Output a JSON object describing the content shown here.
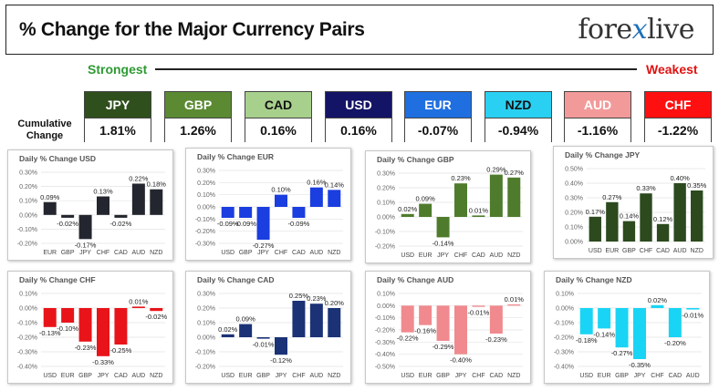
{
  "header": {
    "title": "% Change for the Major Currency Pairs",
    "logo_left": "fore",
    "logo_x": "x",
    "logo_right": "live"
  },
  "scale": {
    "strongest": "Strongest",
    "weakest": "Weakest"
  },
  "cumulative_label": "Cumulative Change",
  "currencies": [
    {
      "name": "JPY",
      "value": "1.81%",
      "color": "#2f4f1d",
      "text_color": "#ffffff"
    },
    {
      "name": "GBP",
      "value": "1.26%",
      "color": "#5b8a33",
      "text_color": "#ffffff"
    },
    {
      "name": "CAD",
      "value": "0.16%",
      "color": "#a8d08d",
      "text_color": "#111111"
    },
    {
      "name": "USD",
      "value": "0.16%",
      "color": "#141466",
      "text_color": "#ffffff"
    },
    {
      "name": "EUR",
      "value": "-0.07%",
      "color": "#1f6fe0",
      "text_color": "#ffffff"
    },
    {
      "name": "NZD",
      "value": "-0.94%",
      "color": "#2ad0f2",
      "text_color": "#111111"
    },
    {
      "name": "AUD",
      "value": "-1.16%",
      "color": "#f29a9a",
      "text_color": "#ffffff"
    },
    {
      "name": "CHF",
      "value": "-1.22%",
      "color": "#ff1010",
      "text_color": "#ffffff"
    }
  ],
  "chart_data": [
    {
      "type": "bar",
      "title": "Daily % Change USD",
      "color": "#23262e",
      "categories": [
        "EUR",
        "GBP",
        "JPY",
        "CHF",
        "CAD",
        "AUD",
        "NZD"
      ],
      "values": [
        0.09,
        -0.02,
        -0.17,
        0.13,
        -0.02,
        0.22,
        0.18
      ],
      "labels": [
        "0.09%",
        "-0.02%",
        "-0.17%",
        "0.13%",
        "-0.02%",
        "0.22%",
        "0.18%"
      ],
      "yticks": [
        0.3,
        0.2,
        0.1,
        0.0,
        -0.1,
        -0.2
      ],
      "ytick_labels": [
        "0.30%",
        "0.20%",
        "0.10%",
        "0.00%",
        "-0.10%",
        "-0.20%"
      ],
      "ylim": [
        -0.2,
        0.3
      ]
    },
    {
      "type": "bar",
      "title": "Daily % Change EUR",
      "color": "#1a3ee0",
      "categories": [
        "USD",
        "GBP",
        "JPY",
        "CHF",
        "CAD",
        "AUD",
        "NZD"
      ],
      "values": [
        -0.09,
        -0.09,
        -0.27,
        0.1,
        -0.09,
        0.16,
        0.14
      ],
      "labels": [
        "-0.09%",
        "-0.09%",
        "-0.27%",
        "0.10%",
        "-0.09%",
        "0.16%",
        "0.14%"
      ],
      "yticks": [
        0.3,
        0.2,
        0.1,
        0.0,
        -0.1,
        -0.2,
        -0.3
      ],
      "ytick_labels": [
        "0.30%",
        "0.20%",
        "0.10%",
        "0.00%",
        "-0.10%",
        "-0.20%",
        "-0.30%"
      ],
      "ylim": [
        -0.3,
        0.3
      ]
    },
    {
      "type": "bar",
      "title": "Daily % Change GBP",
      "color": "#4e7c2c",
      "categories": [
        "USD",
        "EUR",
        "JPY",
        "CHF",
        "CAD",
        "AUD",
        "NZD"
      ],
      "values": [
        0.02,
        0.09,
        -0.14,
        0.23,
        0.01,
        0.29,
        0.27
      ],
      "labels": [
        "0.02%",
        "0.09%",
        "-0.14%",
        "0.23%",
        "0.01%",
        "0.29%",
        "0.27%"
      ],
      "yticks": [
        0.3,
        0.2,
        0.1,
        0.0,
        -0.1,
        -0.2
      ],
      "ytick_labels": [
        "0.30%",
        "0.20%",
        "0.10%",
        "0.00%",
        "-0.10%",
        "-0.20%"
      ],
      "ylim": [
        -0.2,
        0.3
      ]
    },
    {
      "type": "bar",
      "title": "Daily % Change JPY",
      "color": "#2c4a1e",
      "categories": [
        "USD",
        "EUR",
        "GBP",
        "CHF",
        "CAD",
        "AUD",
        "NZD"
      ],
      "values": [
        0.17,
        0.27,
        0.14,
        0.33,
        0.12,
        0.4,
        0.35
      ],
      "labels": [
        "0.17%",
        "0.27%",
        "0.14%",
        "0.33%",
        "0.12%",
        "0.40%",
        "0.35%"
      ],
      "yticks": [
        0.5,
        0.4,
        0.3,
        0.2,
        0.1,
        0.0
      ],
      "ytick_labels": [
        "0.50%",
        "0.40%",
        "0.30%",
        "0.20%",
        "0.10%",
        "0.00%"
      ],
      "ylim": [
        0.0,
        0.5
      ]
    },
    {
      "type": "bar",
      "title": "Daily % Change CHF",
      "color": "#e8141a",
      "categories": [
        "USD",
        "EUR",
        "GBP",
        "JPY",
        "CAD",
        "AUD",
        "NZD"
      ],
      "values": [
        -0.13,
        -0.1,
        -0.23,
        -0.33,
        -0.25,
        0.01,
        -0.02
      ],
      "labels": [
        "-0.13%",
        "-0.10%",
        "-0.23%",
        "-0.33%",
        "-0.25%",
        "0.01%",
        "-0.02%"
      ],
      "yticks": [
        0.1,
        0.0,
        -0.1,
        -0.2,
        -0.3,
        -0.4
      ],
      "ytick_labels": [
        "0.10%",
        "0.00%",
        "-0.10%",
        "-0.20%",
        "-0.30%",
        "-0.40%"
      ],
      "ylim": [
        -0.4,
        0.1
      ]
    },
    {
      "type": "bar",
      "title": "Daily % Change CAD",
      "color": "#1b3277",
      "categories": [
        "USD",
        "EUR",
        "GBP",
        "JPY",
        "CHF",
        "AUD",
        "NZD"
      ],
      "values": [
        0.02,
        0.09,
        -0.01,
        -0.12,
        0.25,
        0.23,
        0.2
      ],
      "labels": [
        "0.02%",
        "0.09%",
        "-0.01%",
        "-0.12%",
        "0.25%",
        "0.23%",
        "0.20%"
      ],
      "yticks": [
        0.3,
        0.2,
        0.1,
        0.0,
        -0.1,
        -0.2
      ],
      "ytick_labels": [
        "0.30%",
        "0.20%",
        "0.10%",
        "0.00%",
        "-0.10%",
        "-0.20%"
      ],
      "ylim": [
        -0.2,
        0.3
      ]
    },
    {
      "type": "bar",
      "title": "Daily % Change AUD",
      "color": "#f08a8e",
      "categories": [
        "USD",
        "EUR",
        "GBP",
        "JPY",
        "CHF",
        "CAD",
        "NZD"
      ],
      "values": [
        -0.22,
        -0.16,
        -0.29,
        -0.4,
        -0.01,
        -0.23,
        0.01
      ],
      "labels": [
        "-0.22%",
        "-0.16%",
        "-0.29%",
        "-0.40%",
        "-0.01%",
        "-0.23%",
        "0.01%"
      ],
      "yticks": [
        0.1,
        0.0,
        -0.1,
        -0.2,
        -0.3,
        -0.4,
        -0.5
      ],
      "ytick_labels": [
        "0.10%",
        "0.00%",
        "-0.10%",
        "-0.20%",
        "-0.30%",
        "-0.40%",
        "-0.50%"
      ],
      "ylim": [
        -0.5,
        0.1
      ]
    },
    {
      "type": "bar",
      "title": "Daily % Change NZD",
      "color": "#1ad4f5",
      "categories": [
        "USD",
        "EUR",
        "GBP",
        "JPY",
        "CHF",
        "CAD",
        "AUD"
      ],
      "values": [
        -0.18,
        -0.14,
        -0.27,
        -0.35,
        0.02,
        -0.2,
        -0.01
      ],
      "labels": [
        "-0.18%",
        "-0.14%",
        "-0.27%",
        "-0.35%",
        "0.02%",
        "-0.20%",
        "-0.01%"
      ],
      "yticks": [
        0.1,
        0.0,
        -0.1,
        -0.2,
        -0.3,
        -0.4
      ],
      "ytick_labels": [
        "0.10%",
        "0.00%",
        "-0.10%",
        "-0.20%",
        "-0.30%",
        "-0.40%"
      ],
      "ylim": [
        -0.4,
        0.1
      ]
    }
  ]
}
